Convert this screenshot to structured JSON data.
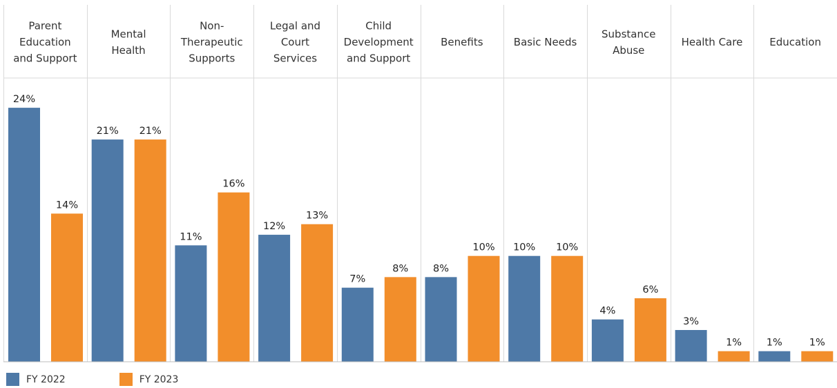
{
  "chart_data": {
    "type": "bar",
    "title": "",
    "xlabel": "",
    "ylabel": "",
    "categories": [
      "Parent Education and Support",
      "Mental Health",
      "Non-Therapeutic Supports",
      "Legal and Court Services",
      "Child Development and Support",
      "Benefits",
      "Basic Needs",
      "Substance Abuse",
      "Health Care",
      "Education"
    ],
    "category_lines": [
      [
        "Parent",
        "Education",
        "and Support"
      ],
      [
        "Mental",
        "Health"
      ],
      [
        "Non-",
        "Therapeutic",
        "Supports"
      ],
      [
        "Legal and",
        "Court",
        "Services"
      ],
      [
        "Child",
        "Development",
        "and Support"
      ],
      [
        "Benefits"
      ],
      [
        "Basic Needs"
      ],
      [
        "Substance",
        "Abuse"
      ],
      [
        "Health Care"
      ],
      [
        "Education"
      ]
    ],
    "series": [
      {
        "name": "FY 2022",
        "color": "#4e79a7",
        "values": [
          24,
          21,
          11,
          12,
          7,
          8,
          10,
          4,
          3,
          1
        ],
        "labels": [
          "24%",
          "21%",
          "11%",
          "12%",
          "7%",
          "8%",
          "10%",
          "4%",
          "3%",
          "1%"
        ]
      },
      {
        "name": "FY 2023",
        "color": "#f28e2b",
        "values": [
          14,
          21,
          16,
          13,
          8,
          10,
          10,
          6,
          1,
          1
        ],
        "labels": [
          "14%",
          "21%",
          "16%",
          "13%",
          "8%",
          "10%",
          "10%",
          "6%",
          "1%",
          "1%"
        ]
      }
    ],
    "ylim": [
      0,
      24
    ],
    "grid": false,
    "legend_position": "bottom-left",
    "y_unit": "%"
  },
  "legend": {
    "items": [
      {
        "label": "FY 2022",
        "color": "#4e79a7"
      },
      {
        "label": "FY 2023",
        "color": "#f28e2b"
      }
    ]
  }
}
